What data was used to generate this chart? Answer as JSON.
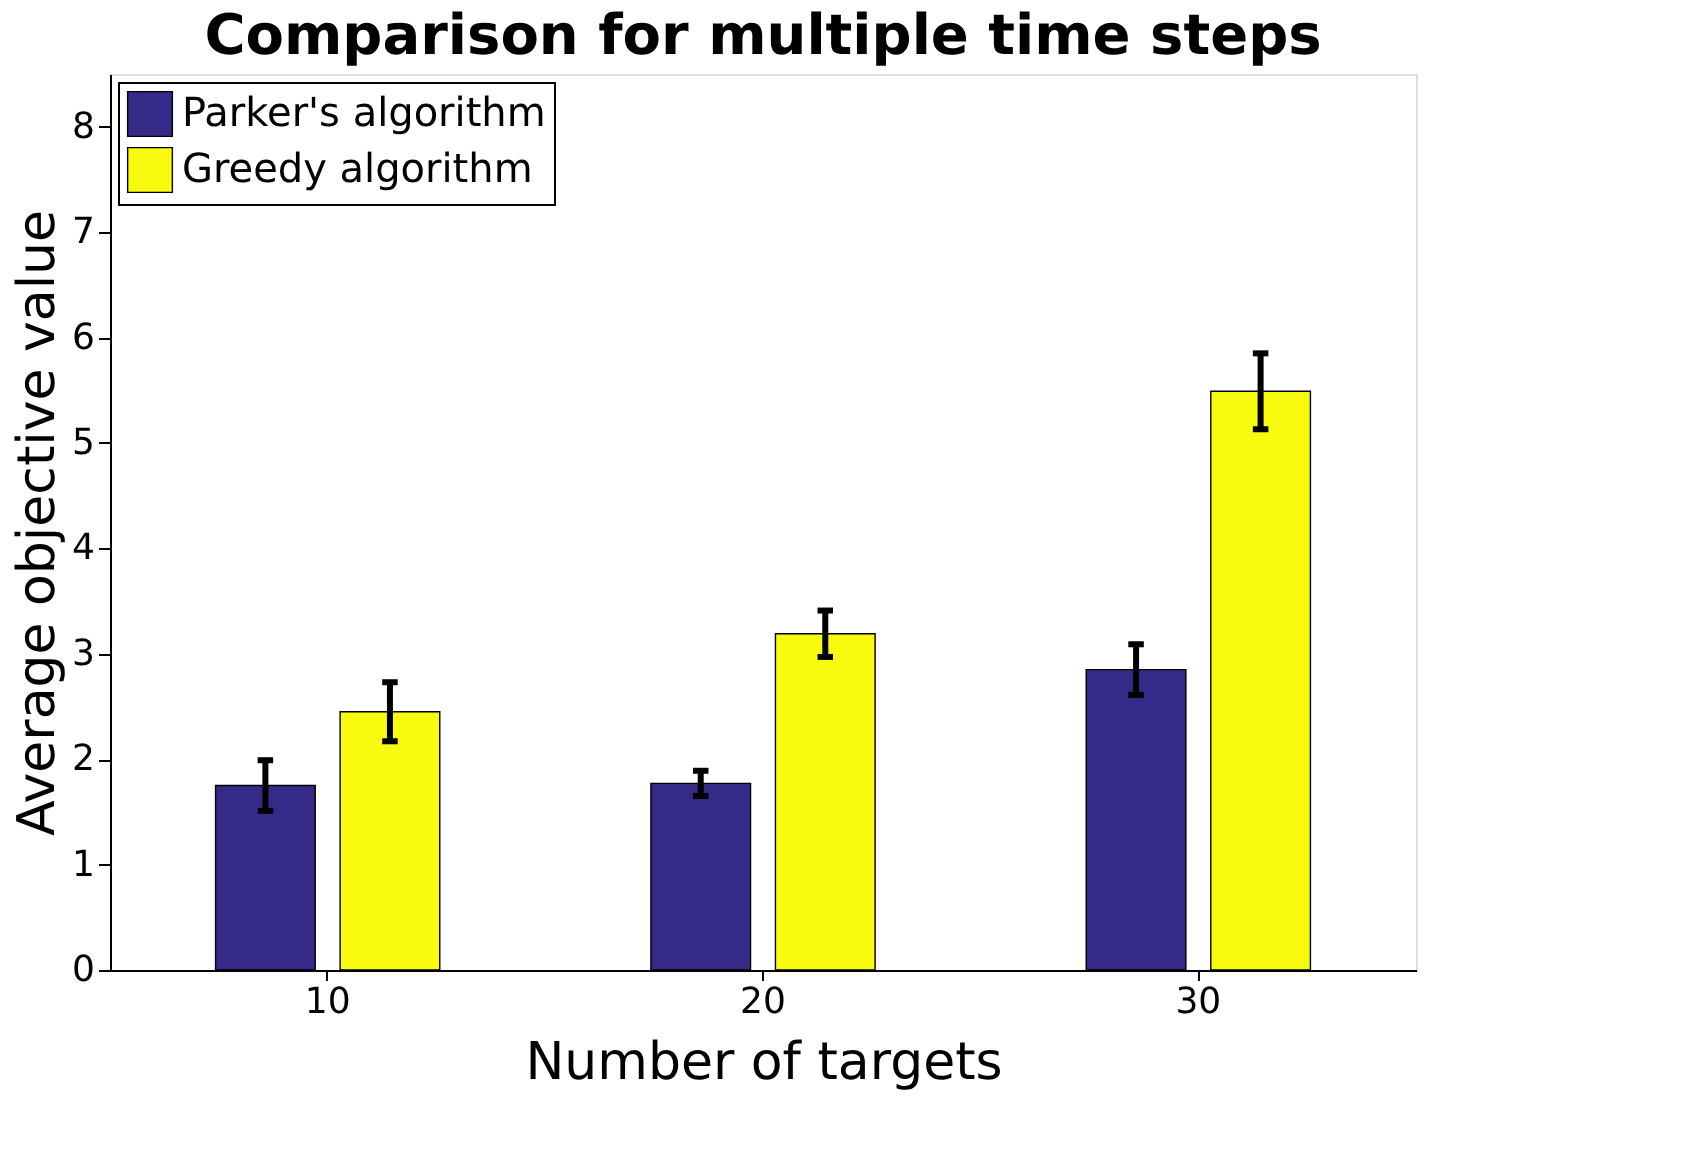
{
  "chart_data": {
    "type": "bar",
    "title": "Comparison for multiple time steps",
    "xlabel": "Number of targets",
    "ylabel": "Average objective value",
    "categories": [
      "10",
      "20",
      "30"
    ],
    "series": [
      {
        "name": "Parker's algorithm",
        "color": "#352a87",
        "values": [
          1.75,
          1.77,
          2.85
        ],
        "errors": [
          0.24,
          0.12,
          0.24
        ]
      },
      {
        "name": "Greedy algorithm",
        "color": "#f9fb0e",
        "values": [
          2.45,
          3.19,
          5.49
        ],
        "errors": [
          0.28,
          0.22,
          0.36
        ]
      }
    ],
    "ylim": [
      0,
      8.5
    ],
    "yticks": [
      0,
      1,
      2,
      3,
      4,
      5,
      6,
      7,
      8
    ],
    "grid": false,
    "legend": "top left"
  }
}
